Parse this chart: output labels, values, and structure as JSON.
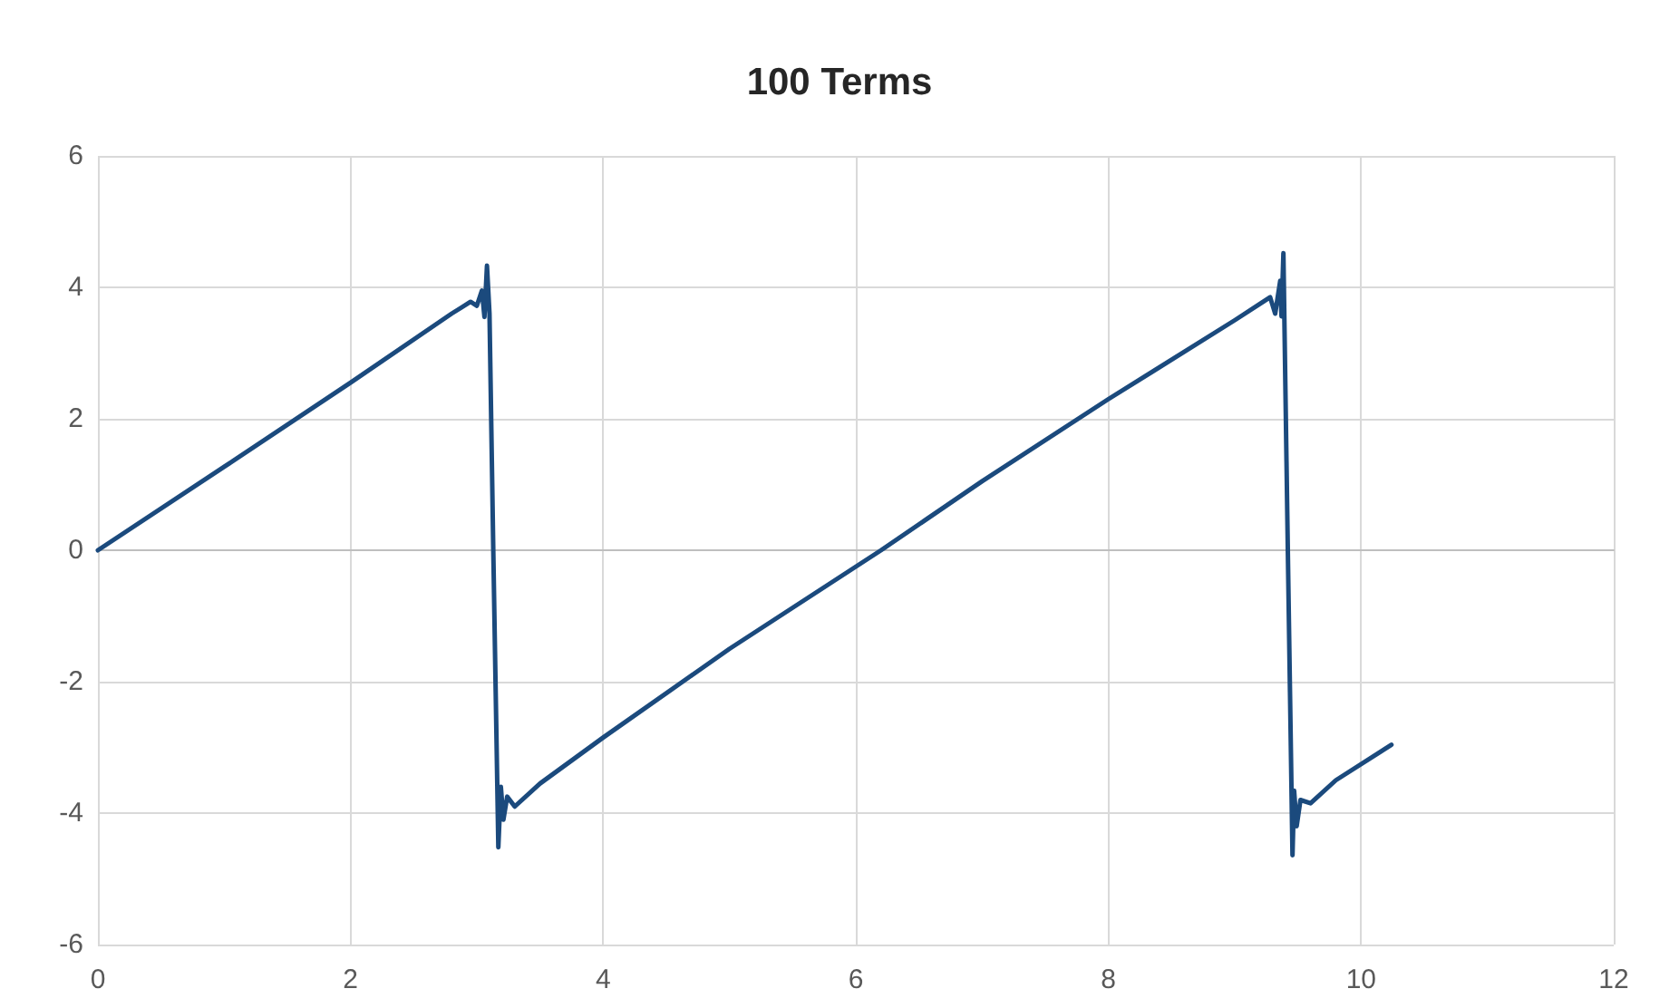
{
  "chart_data": {
    "type": "line",
    "title": "100 Terms",
    "x": [
      0,
      1,
      2,
      2.8,
      2.95,
      3.0,
      3.04,
      3.06,
      3.08,
      3.1,
      3.13,
      3.17,
      3.19,
      3.21,
      3.24,
      3.3,
      3.5,
      4,
      5,
      6.2,
      7,
      8,
      9,
      9.2,
      9.28,
      9.32,
      9.36,
      9.37,
      9.385,
      9.42,
      9.457,
      9.47,
      9.49,
      9.52,
      9.6,
      9.8,
      10.24
    ],
    "series": [
      {
        "color": "#1b4a7d",
        "values": [
          0,
          1.27,
          2.55,
          3.6,
          3.78,
          3.72,
          3.95,
          3.55,
          4.33,
          3.6,
          0,
          -4.52,
          -3.6,
          -4.1,
          -3.75,
          -3.9,
          -3.55,
          -2.85,
          -1.5,
          0,
          1.05,
          2.3,
          3.5,
          3.75,
          3.85,
          3.6,
          4.1,
          3.56,
          4.52,
          0,
          -4.64,
          -3.66,
          -4.2,
          -3.8,
          -3.85,
          -3.5,
          -2.96
        ]
      }
    ],
    "xlim": [
      0,
      12
    ],
    "xticks": [
      0,
      2,
      4,
      6,
      8,
      10,
      12
    ],
    "ylim": [
      -6,
      6
    ],
    "yticks": [
      -6,
      -4,
      -2,
      0,
      2,
      4,
      6
    ],
    "grid": true,
    "marker": "none",
    "line_style": "solid"
  }
}
